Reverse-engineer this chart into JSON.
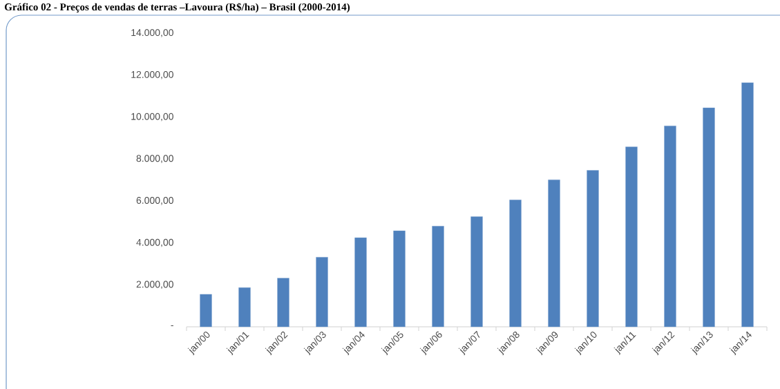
{
  "chart_data": {
    "type": "bar",
    "title": "Gráfico 02 - Preços de vendas de terras –Lavoura (R$/ha) – Brasil (2000-2014)",
    "categories": [
      "jan/00",
      "jan/01",
      "jan/02",
      "jan/03",
      "jan/04",
      "jan/05",
      "jan/06",
      "jan/07",
      "jan/08",
      "jan/09",
      "jan/10",
      "jan/11",
      "jan/12",
      "jan/13",
      "jan/14"
    ],
    "values": [
      1550,
      1870,
      2320,
      3320,
      4250,
      4580,
      4800,
      5250,
      6050,
      7010,
      7460,
      8580,
      9580,
      10440,
      11640
    ],
    "color": "#4f81bd",
    "ylim": [
      0,
      14000
    ],
    "yticks": [
      {
        "value": 0,
        "label": "-"
      },
      {
        "value": 2000,
        "label": "2.000,00"
      },
      {
        "value": 4000,
        "label": "4.000,00"
      },
      {
        "value": 6000,
        "label": "6.000,00"
      },
      {
        "value": 8000,
        "label": "8.000,00"
      },
      {
        "value": 10000,
        "label": "10.000,00"
      },
      {
        "value": 12000,
        "label": "12.000,00"
      },
      {
        "value": 14000,
        "label": "14.000,00"
      }
    ],
    "grid": false
  }
}
